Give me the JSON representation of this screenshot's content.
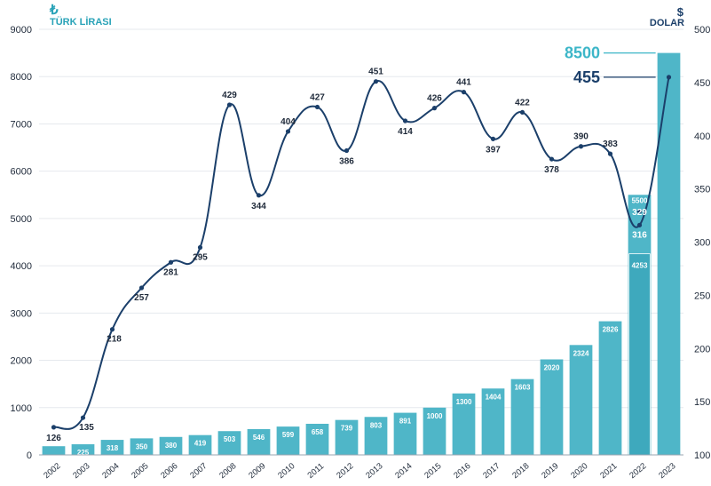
{
  "left_unit": {
    "symbol": "₺",
    "label": "TÜRK LİRASI"
  },
  "right_unit": {
    "symbol": "$",
    "label": "DOLAR"
  },
  "colors": {
    "bar": "#4fb6c8",
    "line": "#1b3f6a",
    "accent": "#3cb6c8"
  },
  "chart_data": {
    "type": "bar",
    "categories": [
      "2002",
      "2003",
      "2004",
      "2005",
      "2006",
      "2007",
      "2008",
      "2009",
      "2010",
      "2011",
      "2012",
      "2013",
      "2014",
      "2015",
      "2016",
      "2017",
      "2018",
      "2019",
      "2020",
      "2021",
      "2022",
      "2023"
    ],
    "series": [
      {
        "type": "bar",
        "axis": "left",
        "values": [
          184,
          225,
          318,
          350,
          380,
          419,
          503,
          546,
          599,
          658,
          739,
          803,
          891,
          1000,
          1300,
          1404,
          1603,
          2020,
          2324,
          2826,
          5500,
          8500
        ],
        "labels": [
          "",
          "225",
          "318",
          "350",
          "380",
          "419",
          "503",
          "546",
          "599",
          "658",
          "739",
          "803",
          "891",
          "1000",
          "1300",
          "1404",
          "1603",
          "2020",
          "2324",
          "2826",
          "5500",
          ""
        ],
        "inner_bar": {
          "category": "2022",
          "value": 4253,
          "label": "4253"
        }
      },
      {
        "type": "line",
        "axis": "right",
        "values": [
          126,
          135,
          218,
          257,
          281,
          295,
          429,
          344,
          404,
          427,
          386,
          451,
          414,
          426,
          441,
          397,
          422,
          378,
          390,
          383,
          316,
          455
        ],
        "labels": [
          "126",
          "135",
          "218",
          "257",
          "281",
          "295",
          "429",
          "344",
          "404",
          "427",
          "386",
          "451",
          "414",
          "426",
          "441",
          "397",
          "422",
          "378",
          "390",
          "383",
          "316",
          ""
        ],
        "extra_point": {
          "category": "2022",
          "value": 329,
          "label": "329"
        }
      }
    ],
    "ylim_left": [
      0,
      9000
    ],
    "yticks_left": [
      0,
      1000,
      2000,
      3000,
      4000,
      5000,
      6000,
      7000,
      8000,
      9000
    ],
    "ylim_right": [
      100,
      500
    ],
    "yticks_right": [
      100,
      150,
      200,
      250,
      300,
      350,
      400,
      450,
      500
    ],
    "yticks_right_labels": [
      "100",
      "150",
      "200",
      "250",
      "300",
      "350",
      "400",
      "450",
      "500"
    ],
    "callouts": [
      {
        "category": "2023",
        "axis": "left",
        "value": 8500,
        "label": "8500"
      },
      {
        "category": "2023",
        "axis": "right",
        "value": 455,
        "label": "455"
      }
    ]
  }
}
